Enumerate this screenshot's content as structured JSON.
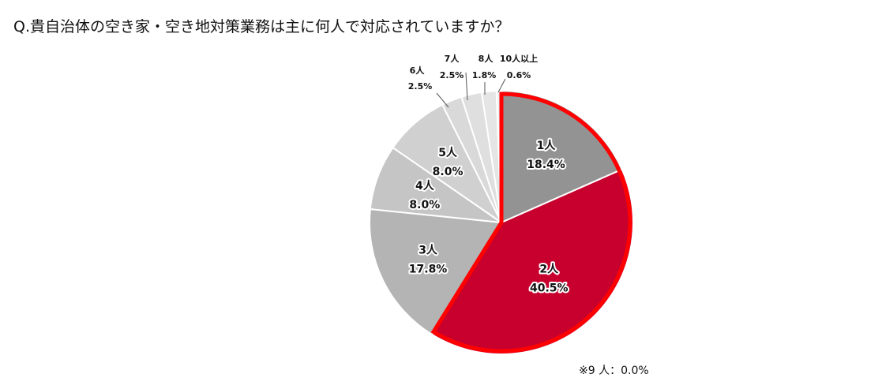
{
  "title": "Q.貴自治体の空き家・空き地対策業務は主に何人で対応されていますか？",
  "note": "※9 人：0.0%",
  "chart_data": {
    "type": "pie",
    "start": "top, clockwise",
    "highlight_outline_color": "#ff0000",
    "highlighted_slices": [
      "1人",
      "2人"
    ],
    "slices": [
      {
        "label": "1人",
        "value": 18.4,
        "value_label": "18.4%",
        "color": "#939393"
      },
      {
        "label": "2人",
        "value": 40.5,
        "value_label": "40.5%",
        "color": "#c8002e"
      },
      {
        "label": "3人",
        "value": 17.8,
        "value_label": "17.8%",
        "color": "#b4b4b4"
      },
      {
        "label": "4人",
        "value": 8.0,
        "value_label": "8.0%",
        "color": "#c5c5c5"
      },
      {
        "label": "5人",
        "value": 8.0,
        "value_label": "8.0%",
        "color": "#d0d0d0"
      },
      {
        "label": "6人",
        "value": 2.5,
        "value_label": "2.5%",
        "color": "#d9d9d9"
      },
      {
        "label": "7人",
        "value": 2.5,
        "value_label": "2.5%",
        "color": "#dfdfdf"
      },
      {
        "label": "8人",
        "value": 1.8,
        "value_label": "1.8%",
        "color": "#e5e5e5"
      },
      {
        "label": "10人以上",
        "value": 0.6,
        "value_label": "0.6%",
        "color": "#eeeeee"
      }
    ]
  }
}
